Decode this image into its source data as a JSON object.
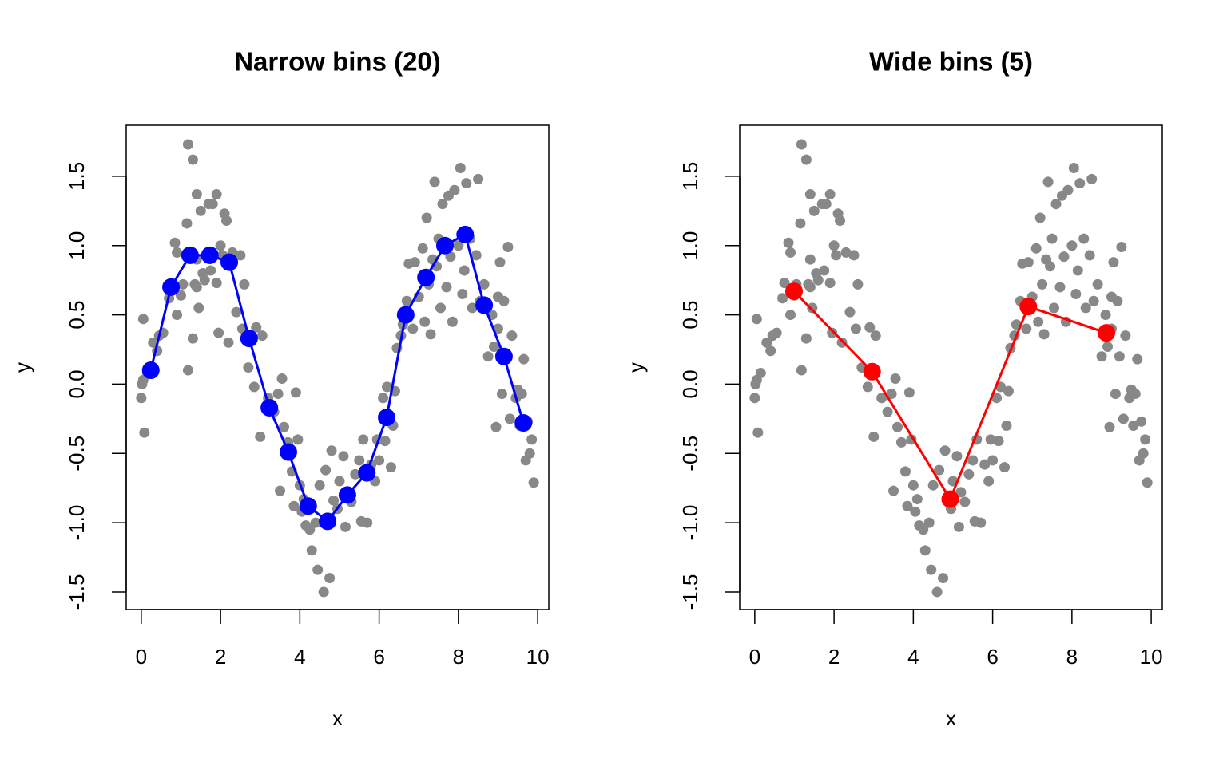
{
  "chart_data": [
    {
      "type": "scatter",
      "title": "Narrow bins (20)",
      "x_label": "x",
      "y_label": "y",
      "xlim": [
        -0.38,
        10.28
      ],
      "ylim": [
        -1.627,
        1.868
      ],
      "xticks": [
        0,
        2,
        4,
        6,
        8,
        10
      ],
      "yticks": [
        -1.5,
        {
          "value": -1,
          "label": "-1.0"
        },
        -0.5,
        {
          "value": 0,
          "label": "0.0"
        },
        0.5,
        {
          "value": 1,
          "label": "1.0"
        },
        1.5
      ],
      "series": [
        {
          "color": "#888888",
          "kind": "points",
          "x": [
            0,
            0.02,
            0.05,
            0.05,
            0.08,
            0.15,
            0.3,
            0.4,
            0.45,
            0.55,
            0.7,
            0.75,
            0.85,
            0.9,
            0.9,
            1.0,
            1.05,
            1.15,
            1.18,
            1.18,
            1.3,
            1.3,
            1.35,
            1.4,
            1.4,
            1.4,
            1.45,
            1.5,
            1.55,
            1.6,
            1.7,
            1.75,
            1.8,
            1.9,
            1.9,
            1.95,
            2.0,
            2.05,
            2.1,
            2.15,
            2.2,
            2.3,
            2.4,
            2.5,
            2.55,
            2.6,
            2.7,
            2.85,
            2.9,
            3.0,
            3.05,
            3.2,
            3.35,
            3.45,
            3.5,
            3.55,
            3.6,
            3.7,
            3.8,
            3.85,
            3.9,
            3.95,
            4.0,
            4.05,
            4.1,
            4.15,
            4.25,
            4.3,
            4.4,
            4.45,
            4.5,
            4.6,
            4.65,
            4.75,
            4.8,
            4.85,
            4.95,
            5.0,
            5.1,
            5.15,
            5.2,
            5.3,
            5.4,
            5.5,
            5.55,
            5.6,
            5.7,
            5.8,
            5.9,
            5.95,
            6.0,
            6.1,
            6.15,
            6.2,
            6.3,
            6.35,
            6.4,
            6.45,
            6.55,
            6.6,
            6.7,
            6.75,
            6.85,
            6.9,
            7.0,
            7.1,
            7.15,
            7.2,
            7.25,
            7.3,
            7.35,
            7.4,
            7.45,
            7.5,
            7.55,
            7.6,
            7.7,
            7.75,
            7.8,
            7.85,
            7.9,
            8.0,
            8.05,
            8.1,
            8.15,
            8.2,
            8.3,
            8.35,
            8.45,
            8.5,
            8.55,
            8.65,
            8.75,
            8.85,
            8.9,
            9.0,
            9.05,
            9.1,
            9.15,
            9.2,
            9.25,
            9.3,
            9.35,
            9.45,
            9.5,
            9.55,
            9.65,
            9.7,
            9.75,
            9.8,
            9.85,
            9.9,
            9.6,
            9.0,
            8.95
          ],
          "values": [
            -0.1,
            0,
            0.03,
            0.47,
            -0.35,
            0.08,
            0.3,
            0.24,
            0.35,
            0.37,
            0.62,
            0.73,
            1.02,
            0.5,
            0.95,
            0.64,
            0.72,
            1.16,
            1.73,
            0.1,
            1.62,
            0.33,
            0.72,
            1.37,
            0.9,
            0.7,
            0.55,
            1.25,
            0.8,
            0.75,
            1.3,
            0.82,
            1.3,
            1.37,
            0.73,
            0.37,
            1.0,
            0.93,
            1.23,
            1.18,
            0.3,
            0.95,
            0.52,
            0.93,
            0.4,
            0.72,
            0.12,
            -0.02,
            0.41,
            -0.38,
            0.35,
            -0.1,
            -0.2,
            -0.07,
            -0.77,
            0.04,
            -0.31,
            -0.42,
            -0.63,
            -0.88,
            -0.06,
            -0.4,
            -0.73,
            -0.92,
            -0.83,
            -1.02,
            -1.05,
            -1.2,
            -1.0,
            -1.34,
            -0.73,
            -1.5,
            -0.62,
            -1.4,
            -0.48,
            -0.84,
            -0.9,
            -0.7,
            -0.52,
            -1.03,
            -0.78,
            -0.85,
            -0.65,
            -0.55,
            -0.99,
            -0.4,
            -1.0,
            -0.58,
            -0.7,
            -0.4,
            -0.55,
            -0.1,
            -0.41,
            -0.02,
            -0.6,
            -0.3,
            -0.05,
            0.26,
            0.35,
            0.43,
            0.6,
            0.87,
            0.4,
            0.88,
            0.63,
            0.98,
            0.45,
            1.2,
            0.72,
            0.36,
            0.9,
            1.46,
            0.85,
            1.05,
            0.55,
            1.3,
            0.7,
            1.36,
            0.92,
            0.45,
            1.4,
            1.0,
            1.56,
            0.65,
            0.82,
            1.45,
            1.05,
            0.55,
            0.93,
            1.48,
            0.6,
            0.72,
            0.2,
            0.5,
            0.27,
            0.4,
            0.88,
            -0.07,
            0.6,
            0.2,
            0.99,
            -0.25,
            0.35,
            -0.1,
            -0.04,
            -0.3,
            0.18,
            -0.55,
            -0.27,
            -0.5,
            -0.4,
            -0.71,
            -0.07,
            0.63,
            -0.31
          ]
        },
        {
          "color": "#0000ff",
          "kind": "line",
          "x": [
            0.24,
            0.75,
            1.23,
            1.73,
            2.22,
            2.72,
            3.23,
            3.71,
            4.21,
            4.7,
            5.2,
            5.69,
            6.19,
            6.67,
            7.18,
            7.66,
            8.17,
            8.65,
            9.15,
            9.64
          ],
          "values": [
            0.1,
            0.7,
            0.93,
            0.93,
            0.88,
            0.33,
            -0.17,
            -0.49,
            -0.88,
            -0.99,
            -0.8,
            -0.64,
            -0.24,
            0.5,
            0.77,
            1.0,
            1.08,
            0.57,
            0.2,
            -0.28
          ]
        }
      ]
    },
    {
      "type": "scatter",
      "title": "Wide bins (5)",
      "x_label": "x",
      "y_label": "y",
      "xlim": [
        -0.38,
        10.28
      ],
      "ylim": [
        -1.627,
        1.868
      ],
      "xticks": [
        0,
        2,
        4,
        6,
        8,
        10
      ],
      "yticks": [
        -1.5,
        {
          "value": -1,
          "label": "-1.0"
        },
        -0.5,
        {
          "value": 0,
          "label": "0.0"
        },
        0.5,
        {
          "value": 1,
          "label": "1.0"
        },
        1.5
      ],
      "series": [
        {
          "color": "#888888",
          "kind": "points",
          "x": [
            0,
            0.02,
            0.05,
            0.05,
            0.08,
            0.15,
            0.3,
            0.4,
            0.45,
            0.55,
            0.7,
            0.75,
            0.85,
            0.9,
            0.9,
            1.0,
            1.05,
            1.15,
            1.18,
            1.18,
            1.3,
            1.3,
            1.35,
            1.4,
            1.4,
            1.4,
            1.45,
            1.5,
            1.55,
            1.6,
            1.7,
            1.75,
            1.8,
            1.9,
            1.9,
            1.95,
            2.0,
            2.05,
            2.1,
            2.15,
            2.2,
            2.3,
            2.4,
            2.5,
            2.55,
            2.6,
            2.7,
            2.85,
            2.9,
            3.0,
            3.05,
            3.2,
            3.35,
            3.45,
            3.5,
            3.55,
            3.6,
            3.7,
            3.8,
            3.85,
            3.9,
            3.95,
            4.0,
            4.05,
            4.1,
            4.15,
            4.25,
            4.3,
            4.4,
            4.45,
            4.5,
            4.6,
            4.65,
            4.75,
            4.8,
            4.85,
            4.95,
            5.0,
            5.1,
            5.15,
            5.2,
            5.3,
            5.4,
            5.5,
            5.55,
            5.6,
            5.7,
            5.8,
            5.9,
            5.95,
            6.0,
            6.1,
            6.15,
            6.2,
            6.3,
            6.35,
            6.4,
            6.45,
            6.55,
            6.6,
            6.7,
            6.75,
            6.85,
            6.9,
            7.0,
            7.1,
            7.15,
            7.2,
            7.25,
            7.3,
            7.35,
            7.4,
            7.45,
            7.5,
            7.55,
            7.6,
            7.7,
            7.75,
            7.8,
            7.85,
            7.9,
            8.0,
            8.05,
            8.1,
            8.15,
            8.2,
            8.3,
            8.35,
            8.45,
            8.5,
            8.55,
            8.65,
            8.75,
            8.85,
            8.9,
            9.0,
            9.05,
            9.1,
            9.15,
            9.2,
            9.25,
            9.3,
            9.35,
            9.45,
            9.5,
            9.55,
            9.65,
            9.7,
            9.75,
            9.8,
            9.85,
            9.9,
            9.6,
            9.0,
            8.95
          ],
          "values": [
            -0.1,
            0,
            0.03,
            0.47,
            -0.35,
            0.08,
            0.3,
            0.24,
            0.35,
            0.37,
            0.62,
            0.73,
            1.02,
            0.5,
            0.95,
            0.64,
            0.72,
            1.16,
            1.73,
            0.1,
            1.62,
            0.33,
            0.72,
            1.37,
            0.9,
            0.7,
            0.55,
            1.25,
            0.8,
            0.75,
            1.3,
            0.82,
            1.3,
            1.37,
            0.73,
            0.37,
            1.0,
            0.93,
            1.23,
            1.18,
            0.3,
            0.95,
            0.52,
            0.93,
            0.4,
            0.72,
            0.12,
            -0.02,
            0.41,
            -0.38,
            0.35,
            -0.1,
            -0.2,
            -0.07,
            -0.77,
            0.04,
            -0.31,
            -0.42,
            -0.63,
            -0.88,
            -0.06,
            -0.4,
            -0.73,
            -0.92,
            -0.83,
            -1.02,
            -1.05,
            -1.2,
            -1.0,
            -1.34,
            -0.73,
            -1.5,
            -0.62,
            -1.4,
            -0.48,
            -0.84,
            -0.9,
            -0.7,
            -0.52,
            -1.03,
            -0.78,
            -0.85,
            -0.65,
            -0.55,
            -0.99,
            -0.4,
            -1.0,
            -0.58,
            -0.7,
            -0.4,
            -0.55,
            -0.1,
            -0.41,
            -0.02,
            -0.6,
            -0.3,
            -0.05,
            0.26,
            0.35,
            0.43,
            0.6,
            0.87,
            0.4,
            0.88,
            0.63,
            0.98,
            0.45,
            1.2,
            0.72,
            0.36,
            0.9,
            1.46,
            0.85,
            1.05,
            0.55,
            1.3,
            0.7,
            1.36,
            0.92,
            0.45,
            1.4,
            1.0,
            1.56,
            0.65,
            0.82,
            1.45,
            1.05,
            0.55,
            0.93,
            1.48,
            0.6,
            0.72,
            0.2,
            0.5,
            0.27,
            0.4,
            0.88,
            -0.07,
            0.6,
            0.2,
            0.99,
            -0.25,
            0.35,
            -0.1,
            -0.04,
            -0.3,
            0.18,
            -0.55,
            -0.27,
            -0.5,
            -0.4,
            -0.71,
            -0.07,
            0.63,
            -0.31
          ]
        },
        {
          "color": "#ff0000",
          "kind": "line",
          "x": [
            0.99,
            2.96,
            4.93,
            6.9,
            8.87
          ],
          "values": [
            0.67,
            0.09,
            -0.83,
            0.56,
            0.37
          ]
        }
      ]
    }
  ]
}
